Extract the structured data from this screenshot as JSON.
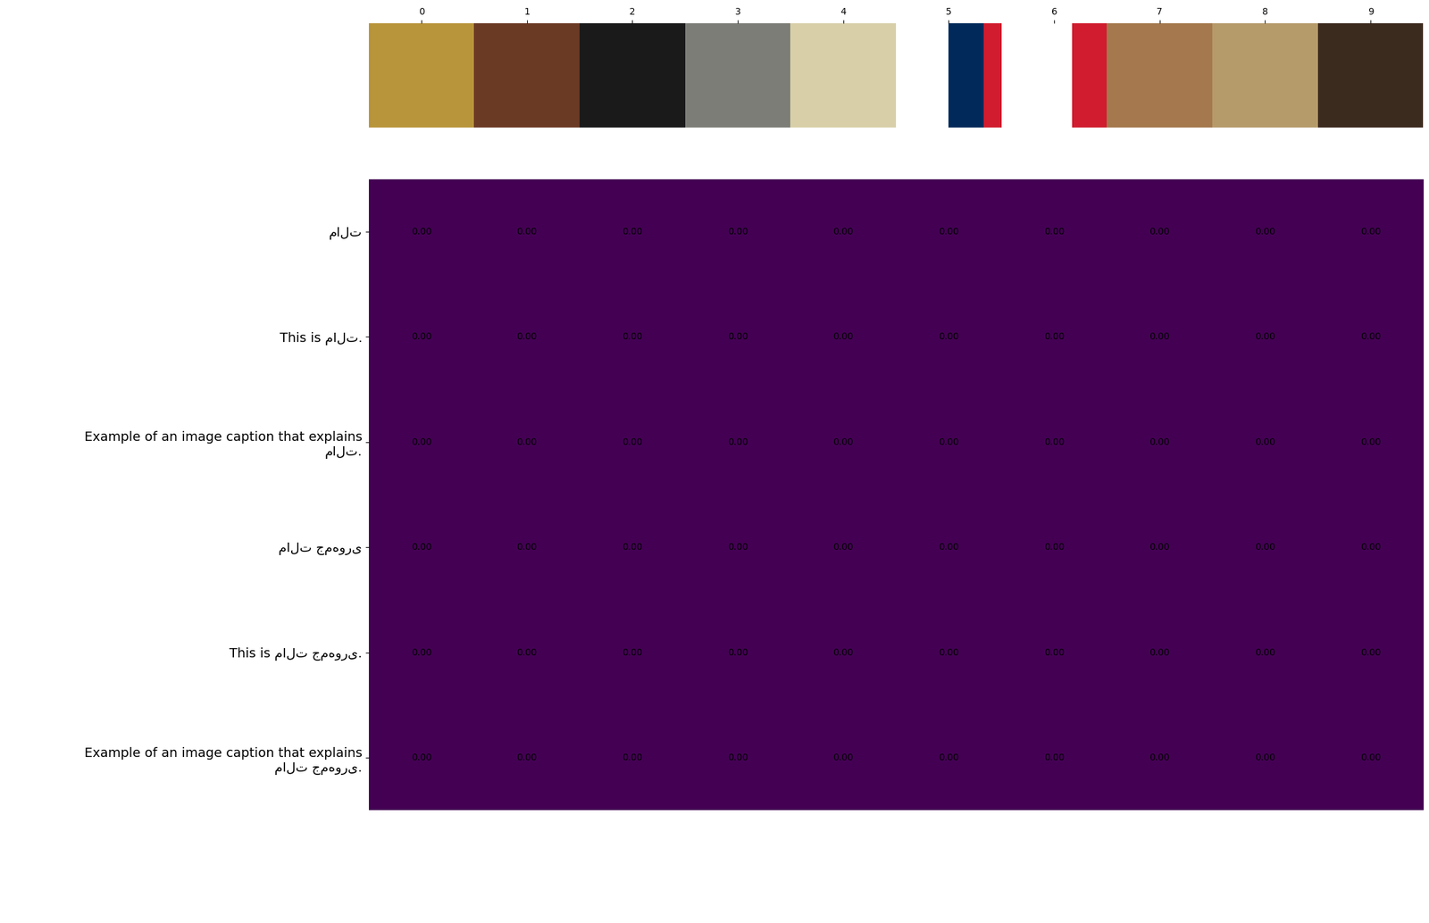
{
  "chart_data": {
    "type": "heatmap",
    "columns": [
      0,
      1,
      2,
      3,
      4,
      5,
      6,
      7,
      8,
      9
    ],
    "rows": [
      "مالت",
      "This is مالت.",
      "Example of an image caption that explains مالت.",
      "مالت جمهوری",
      "This is مالت جمهوری.",
      "Example of an image caption that explains مالت جمهوری."
    ],
    "values": [
      [
        0,
        0,
        0,
        0,
        0,
        0,
        0,
        0,
        0,
        0
      ],
      [
        0,
        0,
        0,
        0,
        0,
        0,
        0,
        0,
        0,
        0
      ],
      [
        0,
        0,
        0,
        0,
        0,
        0,
        0,
        0,
        0,
        0
      ],
      [
        0,
        0,
        0,
        0,
        0,
        0,
        0,
        0,
        0,
        0
      ],
      [
        0,
        0,
        0,
        0,
        0,
        0,
        0,
        0,
        0,
        0
      ],
      [
        0,
        0,
        0,
        0,
        0,
        0,
        0,
        0,
        0,
        0
      ]
    ],
    "value_labels": [
      [
        "0.00",
        "0.00",
        "0.00",
        "0.00",
        "0.00",
        "0.00",
        "0.00",
        "0.00",
        "0.00",
        "0.00"
      ],
      [
        "0.00",
        "0.00",
        "0.00",
        "0.00",
        "0.00",
        "0.00",
        "0.00",
        "0.00",
        "0.00",
        "0.00"
      ],
      [
        "0.00",
        "0.00",
        "0.00",
        "0.00",
        "0.00",
        "0.00",
        "0.00",
        "0.00",
        "0.00",
        "0.00"
      ],
      [
        "0.00",
        "0.00",
        "0.00",
        "0.00",
        "0.00",
        "0.00",
        "0.00",
        "0.00",
        "0.00",
        "0.00"
      ],
      [
        "0.00",
        "0.00",
        "0.00",
        "0.00",
        "0.00",
        "0.00",
        "0.00",
        "0.00",
        "0.00",
        "0.00"
      ],
      [
        "0.00",
        "0.00",
        "0.00",
        "0.00",
        "0.00",
        "0.00",
        "0.00",
        "0.00",
        "0.00",
        "0.00"
      ]
    ],
    "color": "#440154",
    "data_labels": true
  }
}
